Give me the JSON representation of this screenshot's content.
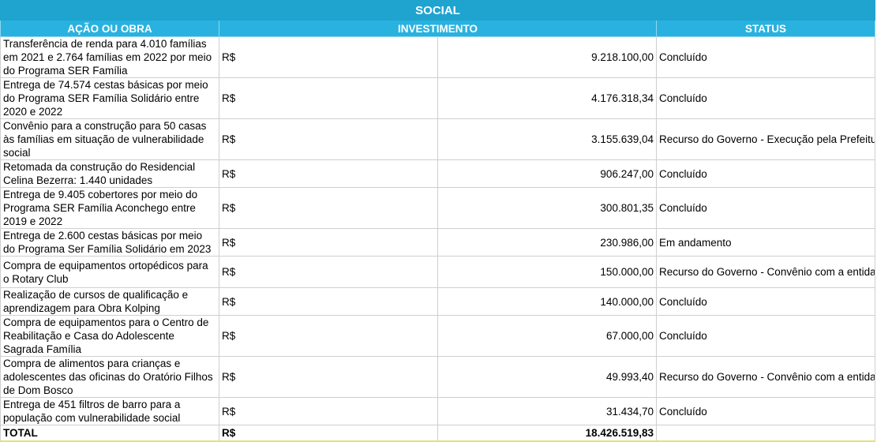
{
  "title": "SOCIAL",
  "headers": {
    "acao": "AÇÃO OU OBRA",
    "investimento": "INVESTIMENTO",
    "status": "STATUS"
  },
  "currency": "R$",
  "rows": [
    {
      "acao": "Transferência de renda para  4.010 famílias em 2021 e 2.764 famílias em 2022 por meio do Programa SER Família",
      "valor": "9.218.100,00",
      "status": "Concluído"
    },
    {
      "acao": "Entrega de 74.574 cestas básicas por meio do Programa SER Família Solidário entre 2020 e 2022",
      "valor": "4.176.318,34",
      "status": "Concluído"
    },
    {
      "acao": "Convênio para a construção para 50 casas às famílias em situação de vulnerabilidade social",
      "valor": "3.155.639,04",
      "status": "Recurso do Governo - Execução pela Prefeitura"
    },
    {
      "acao": "Retomada da construção do Residencial Celina Bezerra: 1.440 unidades",
      "valor": "906.247,00",
      "status": "Concluído"
    },
    {
      "acao": "Entrega de 9.405 cobertores por meio do Programa SER Família Aconchego entre 2019 e 2022",
      "valor": "300.801,35",
      "status": "Concluído"
    },
    {
      "acao": "Entrega de 2.600 cestas básicas por meio do Programa Ser Família Solidário em 2023",
      "valor": "230.986,00",
      "status": "Em andamento"
    },
    {
      "acao": "Compra de equipamentos ortopédicos para o Rotary Club",
      "valor": "150.000,00",
      "status": "Recurso do Governo - Convênio com a entidade"
    },
    {
      "acao": "Realização de cursos de qualificação e aprendizagem para Obra Kolping",
      "valor": "140.000,00",
      "status": "Concluído"
    },
    {
      "acao": "Compra de equipamentos para o Centro de Reabilitação e Casa do Adolescente Sagrada Família",
      "valor": "67.000,00",
      "status": "Concluído"
    },
    {
      "acao": "Compra de alimentos para crianças e adolescentes das oficinas do Oratório Filhos de Dom Bosco",
      "valor": "49.993,40",
      "status": "Recurso do Governo - Convênio com a entidade"
    },
    {
      "acao": "Entrega de 451 filtros de barro para a população com vulnerabilidade social",
      "valor": "31.434,70",
      "status": "Concluído"
    }
  ],
  "total": {
    "label": "TOTAL",
    "currency": "R$",
    "valor": "18.426.519,83"
  }
}
